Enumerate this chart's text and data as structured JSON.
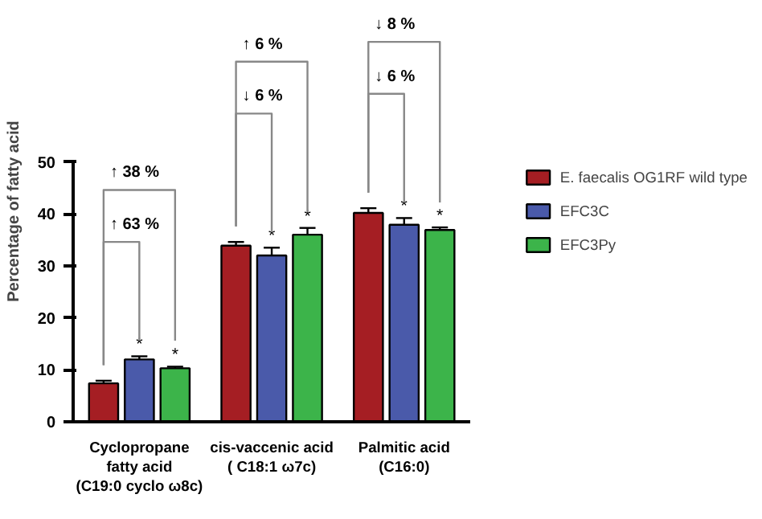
{
  "chart_data": {
    "type": "bar",
    "ylabel": "Percentage of fatty acid",
    "categories": [
      "Cyclopropane\nfatty acid\n(C19:0 cyclo ω8c)",
      "cis-vaccenic acid\n( C18:1 ω7c)",
      "Palmitic acid\n(C16:0)"
    ],
    "series": [
      {
        "name": "E. faecalis OG1RF wild type",
        "color": "#a51e23",
        "values": [
          7.4,
          33.9,
          40.2
        ],
        "errors": [
          0.5,
          0.7,
          0.9
        ]
      },
      {
        "name": "EFC3C",
        "color": "#4a5aaa",
        "values": [
          12.0,
          32.0,
          37.9
        ],
        "errors": [
          0.6,
          1.5,
          1.3
        ],
        "value_labels": [
          "*",
          "*",
          "*"
        ]
      },
      {
        "name": "EFC3Py",
        "color": "#3cb44a",
        "values": [
          10.3,
          36.0,
          36.9
        ],
        "errors": [
          0.3,
          1.3,
          0.5
        ],
        "value_labels": [
          "*",
          "*",
          "*"
        ]
      }
    ],
    "annotations": [
      "↑ 38 %",
      "↑ 63 %",
      "↑ 6 %",
      "↓ 6 %",
      "↓ 8 %",
      "↓ 6 %"
    ],
    "ylim": [
      0,
      50
    ],
    "yticks": [
      0,
      10,
      20,
      30,
      40,
      50
    ],
    "legend": "right"
  }
}
